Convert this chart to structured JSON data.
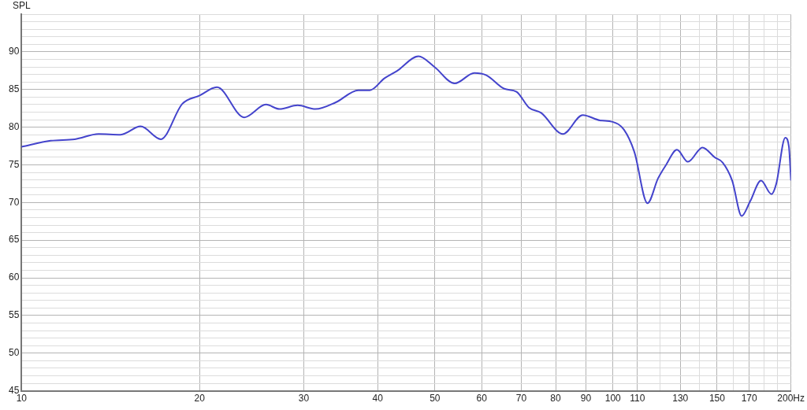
{
  "chart_data": {
    "type": "line",
    "ylabel": "SPL",
    "log": "x",
    "grid": true,
    "legend": false,
    "marker": "none",
    "line_style": "solid",
    "xlim": [
      10,
      200
    ],
    "ylim": [
      45,
      95
    ],
    "xticks": [
      10,
      20,
      30,
      40,
      50,
      60,
      70,
      80,
      90,
      100,
      110,
      {
        "value": 120,
        "label": null
      },
      130,
      {
        "value": 140,
        "label": null
      },
      150,
      {
        "value": 160,
        "label": null
      },
      170,
      {
        "value": 180,
        "label": null
      },
      {
        "value": 190,
        "label": null
      },
      {
        "value": 200,
        "label": "200Hz"
      }
    ],
    "yticks": [
      45,
      {
        "value": 46,
        "label": null
      },
      {
        "value": 47,
        "label": null
      },
      {
        "value": 48,
        "label": null
      },
      {
        "value": 49,
        "label": null
      },
      50,
      {
        "value": 51,
        "label": null
      },
      {
        "value": 52,
        "label": null
      },
      {
        "value": 53,
        "label": null
      },
      {
        "value": 54,
        "label": null
      },
      55,
      {
        "value": 56,
        "label": null
      },
      {
        "value": 57,
        "label": null
      },
      {
        "value": 58,
        "label": null
      },
      {
        "value": 59,
        "label": null
      },
      60,
      {
        "value": 61,
        "label": null
      },
      {
        "value": 62,
        "label": null
      },
      {
        "value": 63,
        "label": null
      },
      {
        "value": 64,
        "label": null
      },
      65,
      {
        "value": 66,
        "label": null
      },
      {
        "value": 67,
        "label": null
      },
      {
        "value": 68,
        "label": null
      },
      {
        "value": 69,
        "label": null
      },
      70,
      {
        "value": 71,
        "label": null
      },
      {
        "value": 72,
        "label": null
      },
      {
        "value": 73,
        "label": null
      },
      {
        "value": 74,
        "label": null
      },
      75,
      {
        "value": 76,
        "label": null
      },
      {
        "value": 77,
        "label": null
      },
      {
        "value": 78,
        "label": null
      },
      {
        "value": 79,
        "label": null
      },
      80,
      {
        "value": 81,
        "label": null
      },
      {
        "value": 82,
        "label": null
      },
      {
        "value": 83,
        "label": null
      },
      {
        "value": 84,
        "label": null
      },
      85,
      {
        "value": 86,
        "label": null
      },
      {
        "value": 87,
        "label": null
      },
      {
        "value": 88,
        "label": null
      },
      {
        "value": 89,
        "label": null
      },
      90,
      {
        "value": 91,
        "label": null
      },
      {
        "value": 92,
        "label": null
      },
      {
        "value": 93,
        "label": null
      },
      {
        "value": 94,
        "label": null
      },
      {
        "value": 95,
        "label": null
      }
    ],
    "x": [
      10,
      11.2,
      12.3,
      13.5,
      14.7,
      15.9,
      17.2,
      18.7,
      20,
      21.4,
      23.8,
      25.9,
      27.3,
      29.3,
      31.4,
      34,
      37.1,
      38.8,
      41.1,
      43.2,
      46.9,
      49.9,
      54,
      58.3,
      61.1,
      65.5,
      68.7,
      72.1,
      75.6,
      82.3,
      88.9,
      95.1,
      99.9,
      104.3,
      108.7,
      114.4,
      119.2,
      123,
      128.3,
      133.9,
      141.7,
      148.6,
      153.3,
      159.1,
      165.1,
      170.5,
      178,
      185.4,
      188.9,
      195.6,
      198.4,
      200
    ],
    "series": [
      {
        "color": "#4444cc",
        "values": [
          77.4,
          78.2,
          78.4,
          79.1,
          79,
          80.1,
          78.4,
          83.1,
          84.2,
          85.3,
          81.3,
          83,
          82.4,
          82.9,
          82.4,
          83.3,
          84.9,
          84.9,
          86.5,
          87.5,
          89.4,
          88,
          85.8,
          87.2,
          86.9,
          85.1,
          84.7,
          82.6,
          81.9,
          79.1,
          81.6,
          80.9,
          80.7,
          79.7,
          76.7,
          69.9,
          73.2,
          75,
          77,
          75.4,
          77.3,
          76,
          75.3,
          72.9,
          68.2,
          70.1,
          72.9,
          71.1,
          72.5,
          78.6,
          77.4,
          73
        ]
      }
    ]
  }
}
